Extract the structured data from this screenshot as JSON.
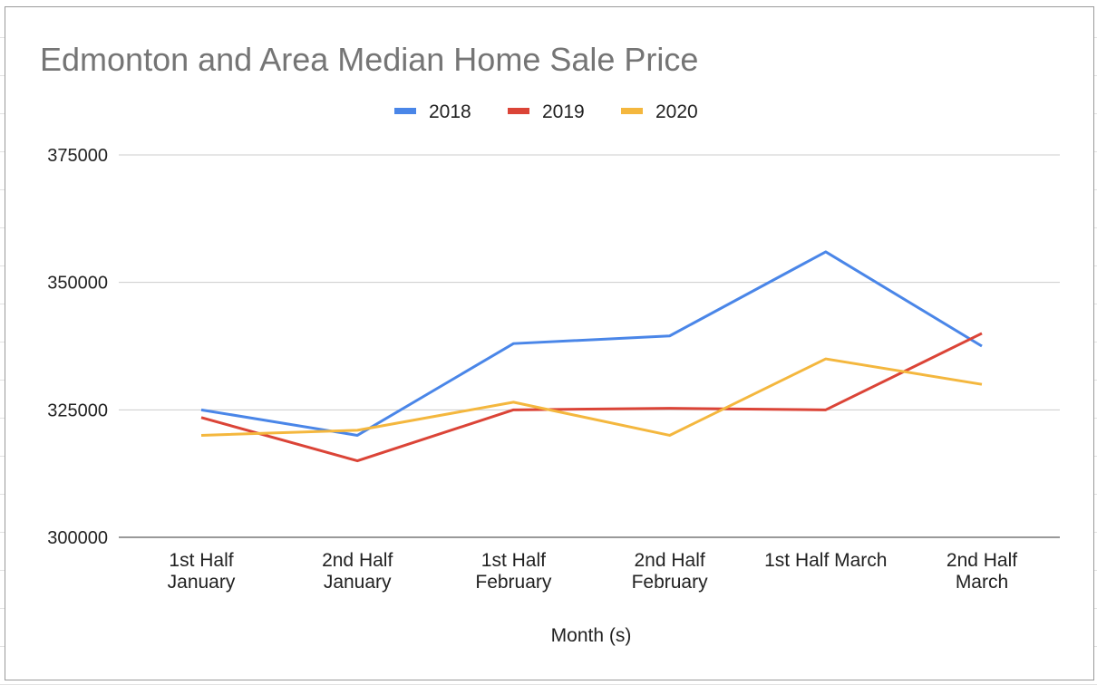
{
  "chart_data": {
    "type": "line",
    "title": "Edmonton and Area Median Home Sale Price",
    "xlabel": "Month (s)",
    "ylabel": "",
    "categories": [
      [
        "1st Half",
        "January"
      ],
      [
        "2nd Half",
        "January"
      ],
      [
        "1st Half",
        "February"
      ],
      [
        "2nd Half",
        "February"
      ],
      [
        "1st Half March"
      ],
      [
        "2nd Half",
        "March"
      ]
    ],
    "ylim": [
      300000,
      375000
    ],
    "yticks": [
      300000,
      325000,
      350000,
      375000
    ],
    "grid": true,
    "legend": "top",
    "series": [
      {
        "name": "2018",
        "color": "#4a86e8",
        "values": [
          325000,
          320000,
          338000,
          339500,
          356000,
          337500
        ]
      },
      {
        "name": "2019",
        "color": "#db4437",
        "values": [
          323500,
          315000,
          325000,
          325300,
          325000,
          340000
        ]
      },
      {
        "name": "2020",
        "color": "#f4b73e",
        "values": [
          320000,
          321000,
          326500,
          320000,
          335000,
          330000
        ]
      }
    ]
  }
}
